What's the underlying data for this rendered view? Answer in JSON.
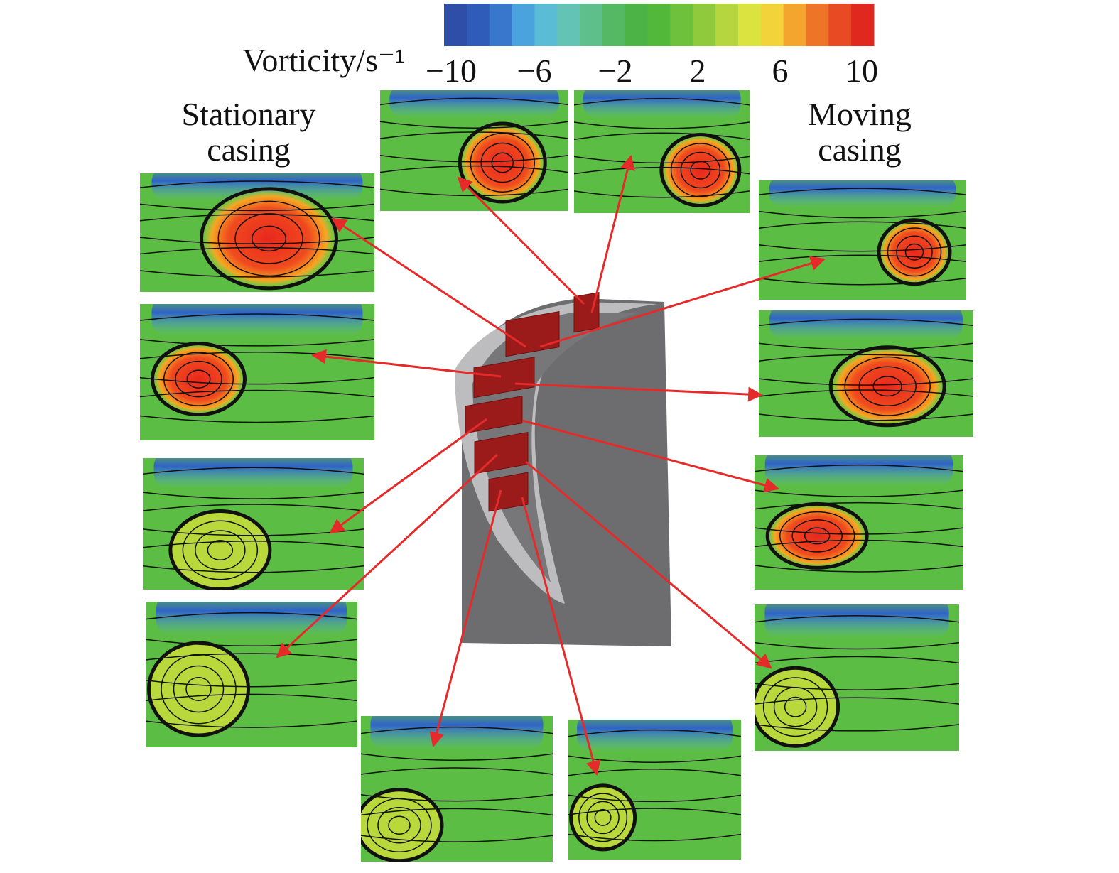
{
  "colorbar": {
    "label": "Vorticity/s⁻¹",
    "ticks": [
      "−10",
      "−6",
      "−2",
      "2",
      "6",
      "10"
    ]
  },
  "labels": {
    "stationary": [
      "Stationary",
      "casing"
    ],
    "moving": [
      "Moving",
      "casing"
    ]
  }
}
